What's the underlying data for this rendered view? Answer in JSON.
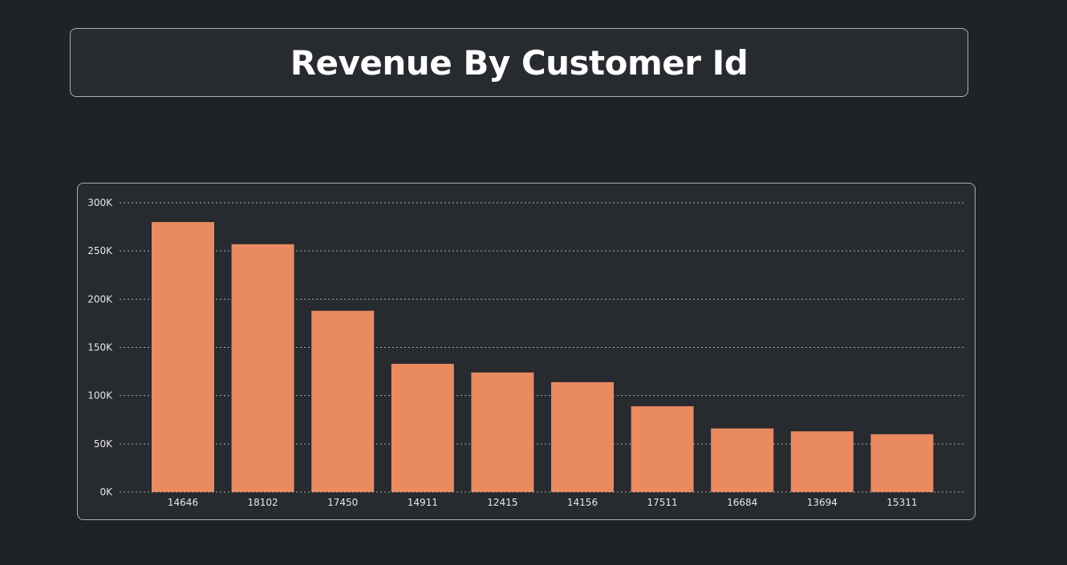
{
  "header": {
    "title": "Revenue By Customer Id"
  },
  "colors": {
    "background": "#202326",
    "card": "#272a2f",
    "bar": "#e98a60",
    "gridline": "#a9adb2",
    "text": "#e8e8e8"
  },
  "chart_data": {
    "type": "bar",
    "title": "Revenue By Customer Id",
    "xlabel": "",
    "ylabel": "",
    "categories": [
      "14646",
      "18102",
      "17450",
      "14911",
      "12415",
      "14156",
      "17511",
      "16684",
      "13694",
      "15311"
    ],
    "values": [
      280000,
      257000,
      188000,
      133000,
      124000,
      114000,
      89000,
      66000,
      63000,
      60000
    ],
    "ylim": [
      0,
      300000
    ],
    "yticks": [
      0,
      50000,
      100000,
      150000,
      200000,
      250000,
      300000
    ],
    "ytick_labels": [
      "0K",
      "50K",
      "100K",
      "150K",
      "200K",
      "250K",
      "300K"
    ],
    "grid": true,
    "legend": "none"
  }
}
